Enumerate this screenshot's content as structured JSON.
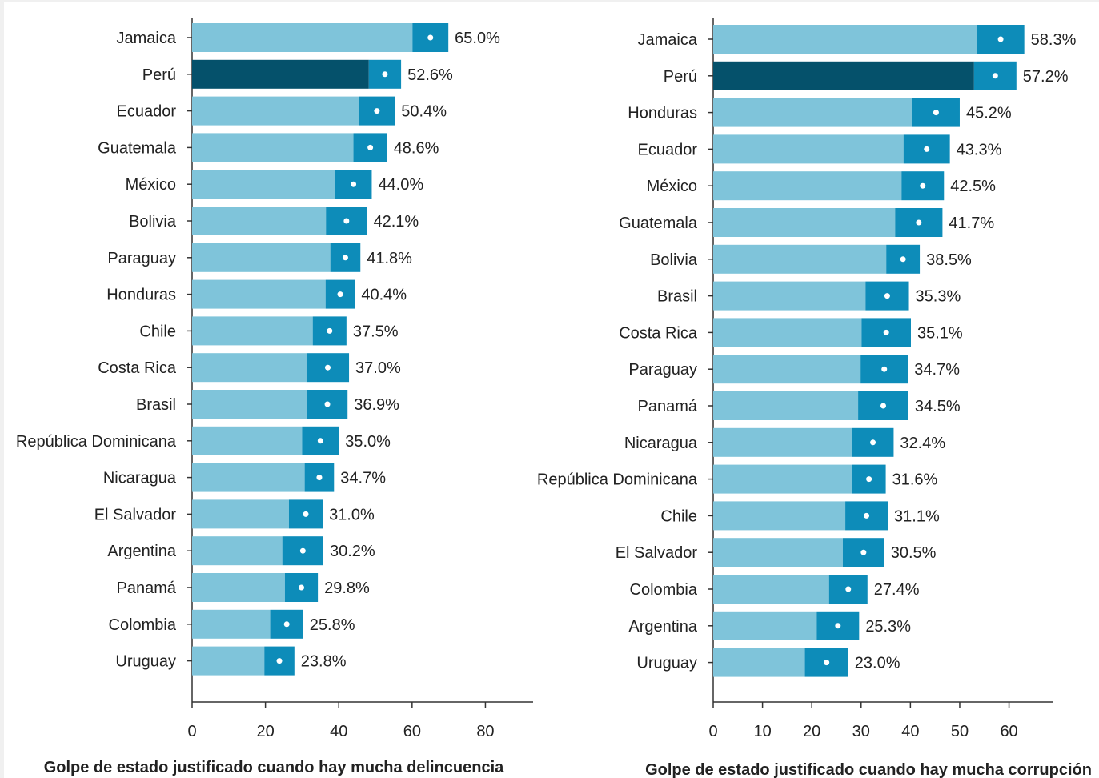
{
  "chart_data": [
    {
      "type": "bar",
      "orientation": "horizontal",
      "xlabel": "Golpe de estado justificado cuando hay mucha delincuencia",
      "xlim": [
        0,
        93
      ],
      "xticks": [
        0,
        20,
        40,
        60,
        80
      ],
      "categories": [
        "Jamaica",
        "Perú",
        "Ecuador",
        "Guatemala",
        "México",
        "Bolivia",
        "Paraguay",
        "Honduras",
        "Chile",
        "Costa Rica",
        "Brasil",
        "República Dominicana",
        "Nicaragua",
        "El Salvador",
        "Argentina",
        "Panamá",
        "Colombia",
        "Uruguay"
      ],
      "values": [
        65.0,
        52.6,
        50.4,
        48.6,
        44.0,
        42.1,
        41.8,
        40.4,
        37.5,
        37.0,
        36.9,
        35.0,
        34.7,
        31.0,
        30.2,
        29.8,
        25.8,
        23.8
      ],
      "value_labels": [
        "65.0%",
        "52.6%",
        "50.4%",
        "48.6%",
        "44.0%",
        "42.1%",
        "41.8%",
        "40.4%",
        "37.5%",
        "37.0%",
        "36.9%",
        "35.0%",
        "34.7%",
        "31.0%",
        "30.2%",
        "29.8%",
        "25.8%",
        "23.8%"
      ],
      "ci_half_width": [
        4.9,
        4.4,
        4.9,
        4.6,
        5.0,
        5.6,
        4.1,
        4.0,
        4.6,
        5.8,
        5.5,
        5.0,
        4.0,
        4.6,
        5.6,
        4.5,
        4.5,
        4.1
      ],
      "highlight": "Perú",
      "grid": false
    },
    {
      "type": "bar",
      "orientation": "horizontal",
      "xlabel": "Golpe de estado justificado cuando hay mucha corrupción",
      "xlim": [
        0,
        69
      ],
      "xticks": [
        0,
        10,
        20,
        30,
        40,
        50,
        60
      ],
      "categories": [
        "Jamaica",
        "Perú",
        "Honduras",
        "Ecuador",
        "México",
        "Guatemala",
        "Bolivia",
        "Brasil",
        "Costa Rica",
        "Paraguay",
        "Panamá",
        "Nicaragua",
        "República Dominicana",
        "Chile",
        "El Salvador",
        "Colombia",
        "Argentina",
        "Uruguay"
      ],
      "values": [
        58.3,
        57.2,
        45.2,
        43.3,
        42.5,
        41.7,
        38.5,
        35.3,
        35.1,
        34.7,
        34.5,
        32.4,
        31.6,
        31.1,
        30.5,
        27.4,
        25.3,
        23.0
      ],
      "value_labels": [
        "58.3%",
        "57.2%",
        "45.2%",
        "43.3%",
        "42.5%",
        "41.7%",
        "38.5%",
        "35.3%",
        "35.1%",
        "34.7%",
        "34.5%",
        "32.4%",
        "31.6%",
        "31.1%",
        "30.5%",
        "27.4%",
        "25.3%",
        "23.0%"
      ],
      "ci_half_width": [
        4.8,
        4.3,
        4.8,
        4.7,
        4.3,
        4.8,
        3.4,
        4.4,
        5.0,
        4.8,
        5.1,
        4.2,
        3.4,
        4.3,
        4.2,
        3.9,
        4.3,
        4.4
      ],
      "highlight": "Perú",
      "grid": false
    }
  ],
  "colors": {
    "bar": "#7fc4da",
    "highlight_bar": "#05516b",
    "ci_band": "#0d8cb9",
    "point": "#ffffff",
    "axis": "#333333",
    "text": "#222222"
  }
}
